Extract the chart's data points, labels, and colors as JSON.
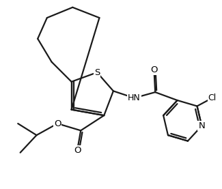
{
  "background_color": "#ffffff",
  "line_color": "#1a1a1a",
  "line_width": 1.6,
  "atoms": {
    "S": "S",
    "O_carbonyl": "O",
    "O_ester": "O",
    "N_pyr": "N",
    "HN": "HN",
    "Cl": "Cl"
  },
  "font_size_atom": 9.5,
  "xlim": [
    0,
    9.5
  ],
  "ylim": [
    0,
    8.0
  ]
}
